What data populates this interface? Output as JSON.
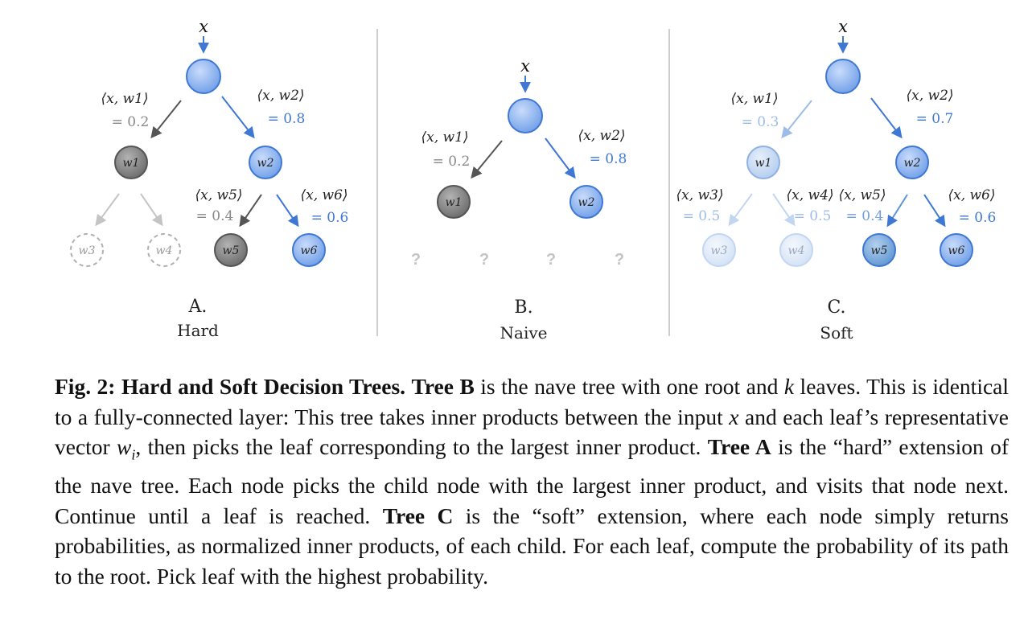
{
  "panels": [
    {
      "letter": "A.",
      "name": "Hard"
    },
    {
      "letter": "B.",
      "name": "Naive"
    },
    {
      "letter": "C.",
      "name": "Soft"
    }
  ],
  "input_label": "x",
  "unknown_leaf": "?",
  "tree_a": {
    "edges": [
      {
        "inner": "⟨x, w1⟩",
        "value": "= 0.2"
      },
      {
        "inner": "⟨x, w2⟩",
        "value": "= 0.8"
      },
      {
        "inner": "⟨x, w5⟩",
        "value": "= 0.4"
      },
      {
        "inner": "⟨x, w6⟩",
        "value": "= 0.6"
      }
    ],
    "nodes": [
      "w1",
      "w2",
      "w3",
      "w4",
      "w5",
      "w6"
    ]
  },
  "tree_b": {
    "edges": [
      {
        "inner": "⟨x, w1⟩",
        "value": "= 0.2"
      },
      {
        "inner": "⟨x, w2⟩",
        "value": "= 0.8"
      }
    ],
    "nodes": [
      "w1",
      "w2"
    ]
  },
  "tree_c": {
    "edges": [
      {
        "inner": "⟨x, w1⟩",
        "value": "= 0.3"
      },
      {
        "inner": "⟨x, w2⟩",
        "value": "= 0.7"
      },
      {
        "inner": "⟨x, w3⟩",
        "value": "= 0.5"
      },
      {
        "inner": "⟨x, w4⟩",
        "value": "= 0.5"
      },
      {
        "inner": "⟨x, w5⟩",
        "value": "= 0.4"
      },
      {
        "inner": "⟨x, w6⟩",
        "value": "= 0.6"
      }
    ],
    "nodes": [
      "w1",
      "w2",
      "w3",
      "w4",
      "w5",
      "w6"
    ]
  },
  "colors": {
    "blue": "#3f78d4",
    "gray": "#666666",
    "light_gray": "#c4c4c4"
  },
  "caption": {
    "fig_label": "Fig. 2: Hard and Soft Decision Trees.",
    "tree_b_label": "Tree B",
    "text1": " is the nave tree with one root and ",
    "k": "k",
    "text2": " leaves. This is identical to a fully-connected layer: This tree takes inner products between the input ",
    "x": "x",
    "text3": " and each leaf’s representative vector ",
    "wi": "w",
    "wi_sub": "i",
    "text4": ", then picks the leaf corresponding to the largest inner product. ",
    "tree_a_label": "Tree A",
    "text5": " is the “hard” extension of the nave tree. Each node picks the child node with the largest inner product, and visits that node next. Continue until a leaf is reached. ",
    "tree_c_label": "Tree C",
    "text6": " is the “soft” extension, where each node simply returns probabilities, as normalized inner products, of each child. For each leaf, compute the probability of its path to the root. Pick leaf with the highest probability."
  }
}
